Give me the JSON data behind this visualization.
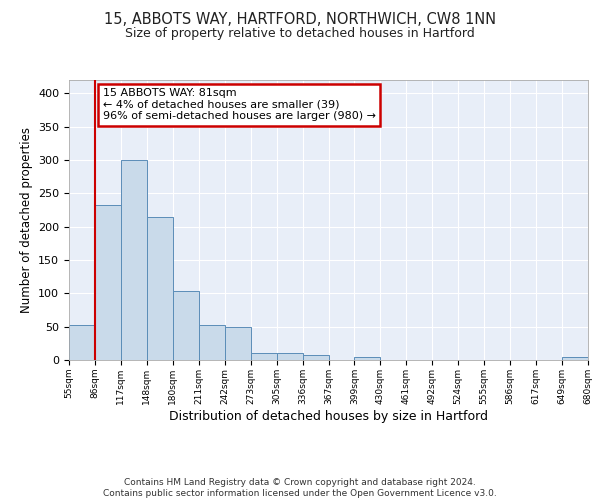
{
  "title1": "15, ABBOTS WAY, HARTFORD, NORTHWICH, CW8 1NN",
  "title2": "Size of property relative to detached houses in Hartford",
  "xlabel": "Distribution of detached houses by size in Hartford",
  "ylabel": "Number of detached properties",
  "bin_labels": [
    "55sqm",
    "86sqm",
    "117sqm",
    "148sqm",
    "180sqm",
    "211sqm",
    "242sqm",
    "273sqm",
    "305sqm",
    "336sqm",
    "367sqm",
    "399sqm",
    "430sqm",
    "461sqm",
    "492sqm",
    "524sqm",
    "555sqm",
    "586sqm",
    "617sqm",
    "649sqm",
    "680sqm"
  ],
  "bar_values": [
    53,
    233,
    300,
    215,
    103,
    52,
    49,
    10,
    10,
    7,
    0,
    5,
    0,
    0,
    0,
    0,
    0,
    0,
    0,
    4
  ],
  "bar_color": "#c9daea",
  "bar_edge_color": "#5b8db8",
  "highlight_color": "#cc0000",
  "annotation_text": "15 ABBOTS WAY: 81sqm\n← 4% of detached houses are smaller (39)\n96% of semi-detached houses are larger (980) →",
  "annotation_box_color": "#cc0000",
  "ylim": [
    0,
    420
  ],
  "yticks": [
    0,
    50,
    100,
    150,
    200,
    250,
    300,
    350,
    400
  ],
  "footer": "Contains HM Land Registry data © Crown copyright and database right 2024.\nContains public sector information licensed under the Open Government Licence v3.0.",
  "background_color": "#ffffff",
  "plot_bg_color": "#e8eef8"
}
